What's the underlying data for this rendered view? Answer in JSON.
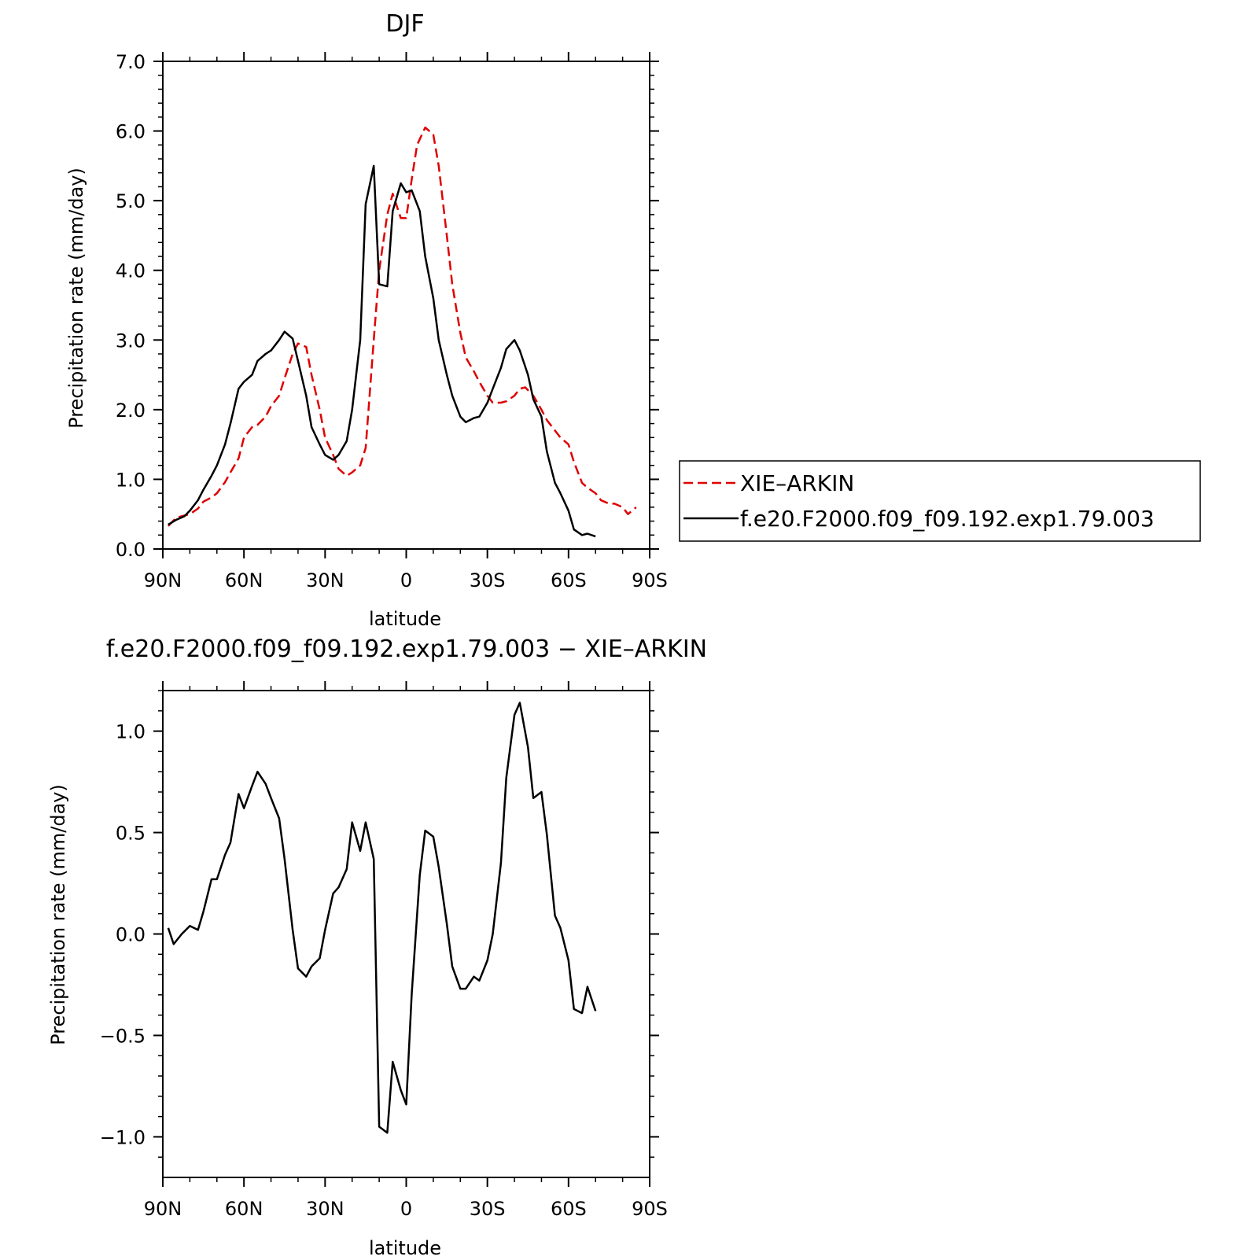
{
  "chart_data": [
    {
      "type": "line",
      "title": "DJF",
      "xlabel": "latitude",
      "ylabel": "Precipitation rate (mm/day)",
      "xlim": [
        -90,
        90
      ],
      "ylim": [
        0,
        7
      ],
      "x_ticks": [
        "90N",
        "60N",
        "30N",
        "0",
        "30S",
        "60S",
        "90S"
      ],
      "y_ticks": [
        "0.0",
        "1.0",
        "2.0",
        "3.0",
        "4.0",
        "5.0",
        "6.0",
        "7.0"
      ],
      "legend_position": "right",
      "series": [
        {
          "name": "XIE–ARKIN",
          "color": "#e00000",
          "dash": "dashed",
          "points": [
            [
              -88,
              0.33
            ],
            [
              -85,
              0.45
            ],
            [
              -80,
              0.5
            ],
            [
              -77,
              0.58
            ],
            [
              -75,
              0.68
            ],
            [
              -72,
              0.74
            ],
            [
              -70,
              0.8
            ],
            [
              -67,
              0.96
            ],
            [
              -65,
              1.1
            ],
            [
              -62,
              1.3
            ],
            [
              -60,
              1.6
            ],
            [
              -57,
              1.75
            ],
            [
              -55,
              1.78
            ],
            [
              -52,
              1.9
            ],
            [
              -50,
              2.05
            ],
            [
              -47,
              2.2
            ],
            [
              -45,
              2.45
            ],
            [
              -42,
              2.8
            ],
            [
              -40,
              2.95
            ],
            [
              -37,
              2.9
            ],
            [
              -35,
              2.5
            ],
            [
              -32,
              2.0
            ],
            [
              -30,
              1.6
            ],
            [
              -27,
              1.35
            ],
            [
              -25,
              1.15
            ],
            [
              -22,
              1.05
            ],
            [
              -20,
              1.1
            ],
            [
              -17,
              1.2
            ],
            [
              -15,
              1.45
            ],
            [
              -12,
              3.0
            ],
            [
              -10,
              4.0
            ],
            [
              -7,
              4.8
            ],
            [
              -5,
              5.1
            ],
            [
              -2,
              4.75
            ],
            [
              0,
              4.75
            ],
            [
              2,
              5.3
            ],
            [
              4,
              5.8
            ],
            [
              7,
              6.05
            ],
            [
              10,
              5.95
            ],
            [
              12,
              5.5
            ],
            [
              15,
              4.5
            ],
            [
              17,
              3.8
            ],
            [
              20,
              3.1
            ],
            [
              22,
              2.75
            ],
            [
              25,
              2.55
            ],
            [
              27,
              2.4
            ],
            [
              30,
              2.2
            ],
            [
              32,
              2.1
            ],
            [
              35,
              2.1
            ],
            [
              37,
              2.12
            ],
            [
              40,
              2.2
            ],
            [
              42,
              2.3
            ],
            [
              44,
              2.32
            ],
            [
              47,
              2.2
            ],
            [
              50,
              2.0
            ],
            [
              52,
              1.85
            ],
            [
              55,
              1.7
            ],
            [
              57,
              1.6
            ],
            [
              60,
              1.5
            ],
            [
              62,
              1.25
            ],
            [
              65,
              0.95
            ],
            [
              67,
              0.88
            ],
            [
              70,
              0.8
            ],
            [
              72,
              0.7
            ],
            [
              75,
              0.65
            ],
            [
              77,
              0.65
            ],
            [
              80,
              0.6
            ],
            [
              82,
              0.5
            ],
            [
              85,
              0.6
            ]
          ]
        },
        {
          "name": "f.e20.F2000.f09_f09.192.exp1.79.003",
          "color": "#000000",
          "dash": "solid",
          "points": [
            [
              -88,
              0.35
            ],
            [
              -85,
              0.42
            ],
            [
              -82,
              0.47
            ],
            [
              -80,
              0.55
            ],
            [
              -77,
              0.7
            ],
            [
              -75,
              0.85
            ],
            [
              -72,
              1.05
            ],
            [
              -70,
              1.2
            ],
            [
              -67,
              1.5
            ],
            [
              -65,
              1.8
            ],
            [
              -62,
              2.3
            ],
            [
              -60,
              2.4
            ],
            [
              -57,
              2.5
            ],
            [
              -55,
              2.7
            ],
            [
              -52,
              2.8
            ],
            [
              -50,
              2.85
            ],
            [
              -47,
              3.0
            ],
            [
              -45,
              3.12
            ],
            [
              -42,
              3.02
            ],
            [
              -40,
              2.7
            ],
            [
              -37,
              2.2
            ],
            [
              -35,
              1.75
            ],
            [
              -32,
              1.5
            ],
            [
              -30,
              1.35
            ],
            [
              -27,
              1.28
            ],
            [
              -25,
              1.35
            ],
            [
              -22,
              1.55
            ],
            [
              -20,
              2.0
            ],
            [
              -17,
              3.0
            ],
            [
              -15,
              4.95
            ],
            [
              -12,
              5.5
            ],
            [
              -10,
              3.8
            ],
            [
              -7,
              3.77
            ],
            [
              -5,
              4.85
            ],
            [
              -2,
              5.25
            ],
            [
              0,
              5.12
            ],
            [
              2,
              5.15
            ],
            [
              5,
              4.85
            ],
            [
              7,
              4.2
            ],
            [
              10,
              3.6
            ],
            [
              12,
              3.0
            ],
            [
              15,
              2.5
            ],
            [
              17,
              2.2
            ],
            [
              20,
              1.9
            ],
            [
              22,
              1.82
            ],
            [
              25,
              1.88
            ],
            [
              27,
              1.9
            ],
            [
              30,
              2.1
            ],
            [
              32,
              2.3
            ],
            [
              35,
              2.6
            ],
            [
              37,
              2.87
            ],
            [
              40,
              3.0
            ],
            [
              42,
              2.85
            ],
            [
              45,
              2.5
            ],
            [
              47,
              2.15
            ],
            [
              50,
              1.9
            ],
            [
              52,
              1.4
            ],
            [
              55,
              0.95
            ],
            [
              57,
              0.8
            ],
            [
              60,
              0.55
            ],
            [
              62,
              0.28
            ],
            [
              65,
              0.2
            ],
            [
              67,
              0.22
            ],
            [
              70,
              0.18
            ]
          ]
        }
      ]
    },
    {
      "type": "line",
      "title": "f.e20.F2000.f09_f09.192.exp1.79.003 − XIE–ARKIN",
      "xlabel": "latitude",
      "ylabel": "Precipitation rate (mm/day)",
      "xlim": [
        -90,
        90
      ],
      "ylim": [
        -1.2,
        1.2
      ],
      "x_ticks": [
        "90N",
        "60N",
        "30N",
        "0",
        "30S",
        "60S",
        "90S"
      ],
      "y_ticks": [
        "−1.0",
        "−0.5",
        "0.0",
        "0.5",
        "1.0"
      ],
      "series": [
        {
          "color": "#000000",
          "dash": "solid",
          "points": [
            [
              -88,
              0.03
            ],
            [
              -86,
              -0.05
            ],
            [
              -83,
              0.0
            ],
            [
              -80,
              0.04
            ],
            [
              -77,
              0.02
            ],
            [
              -75,
              0.11
            ],
            [
              -72,
              0.27
            ],
            [
              -70,
              0.27
            ],
            [
              -67,
              0.39
            ],
            [
              -65,
              0.45
            ],
            [
              -62,
              0.69
            ],
            [
              -60,
              0.62
            ],
            [
              -57,
              0.73
            ],
            [
              -55,
              0.8
            ],
            [
              -52,
              0.74
            ],
            [
              -50,
              0.67
            ],
            [
              -47,
              0.57
            ],
            [
              -45,
              0.37
            ],
            [
              -42,
              0.02
            ],
            [
              -40,
              -0.17
            ],
            [
              -37,
              -0.21
            ],
            [
              -35,
              -0.16
            ],
            [
              -32,
              -0.12
            ],
            [
              -30,
              0.02
            ],
            [
              -27,
              0.2
            ],
            [
              -25,
              0.23
            ],
            [
              -22,
              0.32
            ],
            [
              -20,
              0.55
            ],
            [
              -17,
              0.41
            ],
            [
              -15,
              0.55
            ],
            [
              -12,
              0.37
            ],
            [
              -10,
              -0.95
            ],
            [
              -7,
              -0.98
            ],
            [
              -5,
              -0.63
            ],
            [
              -2,
              -0.77
            ],
            [
              0,
              -0.84
            ],
            [
              2,
              -0.3
            ],
            [
              5,
              0.29
            ],
            [
              7,
              0.51
            ],
            [
              10,
              0.48
            ],
            [
              12,
              0.33
            ],
            [
              15,
              0.05
            ],
            [
              17,
              -0.16
            ],
            [
              20,
              -0.27
            ],
            [
              22,
              -0.27
            ],
            [
              25,
              -0.21
            ],
            [
              27,
              -0.23
            ],
            [
              30,
              -0.13
            ],
            [
              32,
              0.0
            ],
            [
              35,
              0.35
            ],
            [
              37,
              0.77
            ],
            [
              40,
              1.08
            ],
            [
              42,
              1.14
            ],
            [
              45,
              0.92
            ],
            [
              47,
              0.67
            ],
            [
              50,
              0.7
            ],
            [
              52,
              0.49
            ],
            [
              55,
              0.09
            ],
            [
              57,
              0.03
            ],
            [
              60,
              -0.13
            ],
            [
              62,
              -0.37
            ],
            [
              65,
              -0.39
            ],
            [
              67,
              -0.26
            ],
            [
              70,
              -0.38
            ]
          ]
        }
      ]
    }
  ]
}
